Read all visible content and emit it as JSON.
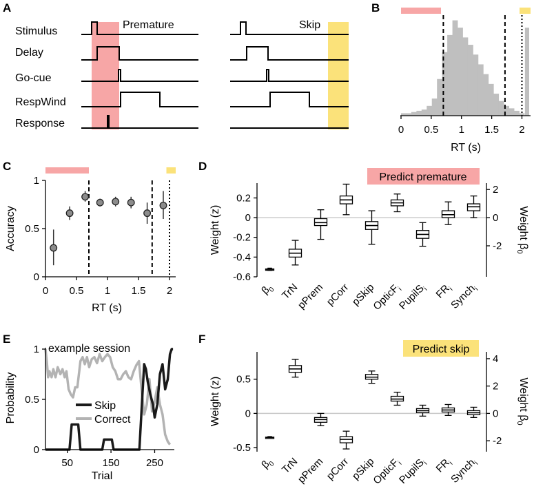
{
  "colors": {
    "premature": "#f7a6a6",
    "skip": "#fbe27a",
    "histogram": "#bfbfbf",
    "marker": "#8c8c8c",
    "skip_line": "#1a1a1a",
    "correct_line": "#b3b3b3"
  },
  "panels": {
    "A": {
      "letter": "A",
      "rows": [
        "Stimulus",
        "Delay",
        "Go-cue",
        "RespWind",
        "Response"
      ],
      "premature_label": "Premature",
      "skip_label": "Skip"
    },
    "B": {
      "letter": "B"
    },
    "C": {
      "letter": "C"
    },
    "D": {
      "letter": "D",
      "title": "Predict premature"
    },
    "E": {
      "letter": "E"
    },
    "F": {
      "letter": "F",
      "title": "Predict skip"
    }
  },
  "chart_data": [
    {
      "panel": "B",
      "type": "bar",
      "xlabel": "RT (s)",
      "xlim": [
        0,
        2.12
      ],
      "xticks": [
        0,
        0.5,
        1,
        1.5,
        2
      ],
      "tick_labels": [
        "0",
        "0.5",
        "1",
        "1.5",
        "2"
      ],
      "bin_width": 0.085,
      "bin_start": 0,
      "counts": [
        2,
        2,
        3,
        4,
        5,
        8,
        14,
        30,
        52,
        66,
        78,
        72,
        64,
        58,
        50,
        42,
        34,
        26,
        18,
        12,
        8,
        6,
        4,
        2
      ],
      "count_max": 80,
      "skip_bar": {
        "x_start": 2.05,
        "x_end": 2.12,
        "value": 72
      },
      "premature_window": [
        0,
        0.7
      ],
      "dashed_lines": [
        0.7,
        1.72
      ],
      "dotted_line": 2.0
    },
    {
      "panel": "C",
      "type": "scatter",
      "xlabel": "RT (s)",
      "ylabel": "Accuracy",
      "xlim": [
        0,
        2.1
      ],
      "ylim": [
        0,
        1
      ],
      "xticks": [
        0,
        0.5,
        1,
        1.5,
        2
      ],
      "x_tick_labels": [
        "0",
        "0.5",
        "1",
        "1.5",
        "2"
      ],
      "yticks": [
        0,
        0.5,
        1
      ],
      "y_tick_labels": [
        "0",
        "0.5",
        "1"
      ],
      "points": [
        {
          "x": 0.13,
          "y": 0.3,
          "lo": 0.12,
          "hi": 0.49
        },
        {
          "x": 0.39,
          "y": 0.66,
          "lo": 0.59,
          "hi": 0.73
        },
        {
          "x": 0.64,
          "y": 0.83,
          "lo": 0.78,
          "hi": 0.89
        },
        {
          "x": 0.88,
          "y": 0.77,
          "lo": 0.73,
          "hi": 0.81
        },
        {
          "x": 1.13,
          "y": 0.78,
          "lo": 0.73,
          "hi": 0.83
        },
        {
          "x": 1.38,
          "y": 0.77,
          "lo": 0.71,
          "hi": 0.83
        },
        {
          "x": 1.64,
          "y": 0.66,
          "lo": 0.55,
          "hi": 0.77
        },
        {
          "x": 1.9,
          "y": 0.74,
          "lo": 0.6,
          "hi": 0.89
        }
      ],
      "premature_window": [
        0,
        0.7
      ],
      "skip_window": [
        1.95,
        2.1
      ],
      "dashed_lines": [
        0.7,
        1.72
      ],
      "dotted_line": 2.0
    },
    {
      "panel": "D",
      "type": "box",
      "title": "Predict premature",
      "ylabel": "Weight (z)",
      "ylabel_right": "Weight β",
      "ylim": [
        -0.6,
        0.35
      ],
      "yticks": [
        -0.6,
        -0.4,
        -0.2,
        0,
        0.2
      ],
      "y_tick_labels": [
        "-0.6",
        "-0.4",
        "-0.2",
        "0",
        "0.2"
      ],
      "right_ticks": [
        {
          "at": 0.2857,
          "label": "2"
        },
        {
          "at": 0.0,
          "label": "0"
        },
        {
          "at": -0.2857,
          "label": "-2"
        }
      ],
      "categories": [
        {
          "base": "β",
          "sub": "0"
        },
        {
          "base": "TrN",
          "sub": ""
        },
        {
          "base": "pPrem",
          "sub": ""
        },
        {
          "base": "pCorr",
          "sub": ""
        },
        {
          "base": "pSkip",
          "sub": ""
        },
        {
          "base": "OpticF",
          "sub": "i"
        },
        {
          "base": "PupilS",
          "sub": "i"
        },
        {
          "base": "FR",
          "sub": "i"
        },
        {
          "base": "Synch",
          "sub": "i"
        }
      ],
      "boxes": [
        {
          "min": -0.535,
          "q1": -0.528,
          "med": -0.524,
          "q3": -0.52,
          "max": -0.512
        },
        {
          "min": -0.48,
          "q1": -0.4,
          "med": -0.36,
          "q3": -0.32,
          "max": -0.23
        },
        {
          "min": -0.22,
          "q1": -0.08,
          "med": -0.05,
          "q3": -0.01,
          "max": 0.08
        },
        {
          "min": 0.03,
          "q1": 0.14,
          "med": 0.18,
          "q3": 0.22,
          "max": 0.34
        },
        {
          "min": -0.27,
          "q1": -0.12,
          "med": -0.08,
          "q3": -0.04,
          "max": 0.07
        },
        {
          "min": 0.06,
          "q1": 0.12,
          "med": 0.15,
          "q3": 0.18,
          "max": 0.24
        },
        {
          "min": -0.29,
          "q1": -0.21,
          "med": -0.17,
          "q3": -0.13,
          "max": -0.05
        },
        {
          "min": -0.07,
          "q1": 0.0,
          "med": 0.03,
          "q3": 0.07,
          "max": 0.16
        },
        {
          "min": 0.0,
          "q1": 0.07,
          "med": 0.11,
          "q3": 0.14,
          "max": 0.22
        }
      ]
    },
    {
      "panel": "E",
      "type": "line",
      "title": "example session",
      "xlabel": "Trial",
      "ylabel": "Probability",
      "xlim": [
        0,
        295
      ],
      "ylim": [
        0,
        1
      ],
      "xticks": [
        50,
        150,
        250
      ],
      "x_tick_labels": [
        "50",
        "150",
        "250"
      ],
      "yticks": [
        0,
        0.5,
        1
      ],
      "y_tick_labels": [
        "0",
        "0.5",
        "1"
      ],
      "series": [
        {
          "name": "Skip",
          "x": [
            0,
            55,
            60,
            75,
            80,
            130,
            134,
            152,
            156,
            215,
            222,
            226,
            230,
            234,
            240,
            246,
            250,
            256,
            262,
            268,
            274,
            280,
            285,
            289,
            292
          ],
          "y": [
            0,
            0,
            0.25,
            0.25,
            0,
            0,
            0.1,
            0.1,
            0,
            0,
            0.55,
            0.85,
            0.8,
            0.68,
            0.55,
            0.45,
            0.32,
            0.45,
            0.75,
            0.85,
            0.6,
            0.7,
            0.95,
            1.0,
            1.0
          ]
        },
        {
          "name": "Correct",
          "x": [
            0,
            3,
            6,
            9,
            14,
            18,
            23,
            28,
            34,
            39,
            44,
            48,
            53,
            58,
            63,
            68,
            73,
            80,
            85,
            90,
            95,
            100,
            106,
            112,
            118,
            124,
            130,
            136,
            142,
            148,
            154,
            160,
            166,
            172,
            178,
            184,
            190,
            196,
            202,
            208,
            214,
            220,
            226,
            232,
            238,
            244,
            250,
            256,
            262,
            268,
            274,
            280,
            285
          ],
          "y": [
            1.0,
            0.88,
            0.72,
            0.78,
            0.72,
            0.8,
            0.72,
            0.82,
            0.75,
            0.8,
            0.72,
            0.78,
            0.6,
            0.55,
            0.52,
            0.62,
            0.62,
            0.88,
            0.92,
            0.85,
            0.92,
            0.82,
            0.9,
            0.92,
            0.86,
            0.95,
            0.88,
            0.92,
            0.95,
            0.92,
            0.82,
            0.78,
            0.7,
            0.7,
            0.75,
            0.78,
            0.72,
            0.7,
            0.78,
            0.84,
            0.88,
            0.6,
            0.35,
            0.45,
            0.7,
            0.38,
            0.48,
            0.62,
            0.45,
            0.35,
            0.15,
            0.08,
            0.05
          ]
        }
      ]
    },
    {
      "panel": "F",
      "type": "box",
      "title": "Predict skip",
      "ylabel": "Weight (z)",
      "ylabel_right": "Weight β",
      "ylim": [
        -0.56,
        0.9
      ],
      "yticks": [
        -0.5,
        0,
        0.5
      ],
      "y_tick_labels": [
        "-0.5",
        "0",
        "0.5"
      ],
      "right_ticks": [
        {
          "at": 0.8,
          "label": "4"
        },
        {
          "at": 0.4,
          "label": "2"
        },
        {
          "at": 0.0,
          "label": "0"
        },
        {
          "at": -0.4,
          "label": "-2"
        }
      ],
      "categories": [
        {
          "base": "β",
          "sub": "0"
        },
        {
          "base": "TrN",
          "sub": ""
        },
        {
          "base": "pPrem",
          "sub": ""
        },
        {
          "base": "pCorr",
          "sub": ""
        },
        {
          "base": "pSkip",
          "sub": ""
        },
        {
          "base": "OpticF",
          "sub": "i"
        },
        {
          "base": "PupilS",
          "sub": "i"
        },
        {
          "base": "FR",
          "sub": "i"
        },
        {
          "base": "Synch",
          "sub": "i"
        }
      ],
      "boxes": [
        {
          "min": -0.365,
          "q1": -0.357,
          "med": -0.352,
          "q3": -0.347,
          "max": -0.339
        },
        {
          "min": 0.53,
          "q1": 0.6,
          "med": 0.65,
          "q3": 0.7,
          "max": 0.79
        },
        {
          "min": -0.18,
          "q1": -0.13,
          "med": -0.09,
          "q3": -0.06,
          "max": 0.0
        },
        {
          "min": -0.52,
          "q1": -0.43,
          "med": -0.38,
          "q3": -0.34,
          "max": -0.26
        },
        {
          "min": 0.44,
          "q1": 0.5,
          "med": 0.53,
          "q3": 0.57,
          "max": 0.62
        },
        {
          "min": 0.12,
          "q1": 0.18,
          "med": 0.21,
          "q3": 0.25,
          "max": 0.31
        },
        {
          "min": -0.04,
          "q1": 0.01,
          "med": 0.04,
          "q3": 0.07,
          "max": 0.12
        },
        {
          "min": -0.03,
          "q1": 0.02,
          "med": 0.05,
          "q3": 0.08,
          "max": 0.13
        },
        {
          "min": -0.06,
          "q1": -0.02,
          "med": 0.01,
          "q3": 0.04,
          "max": 0.09
        }
      ]
    }
  ]
}
